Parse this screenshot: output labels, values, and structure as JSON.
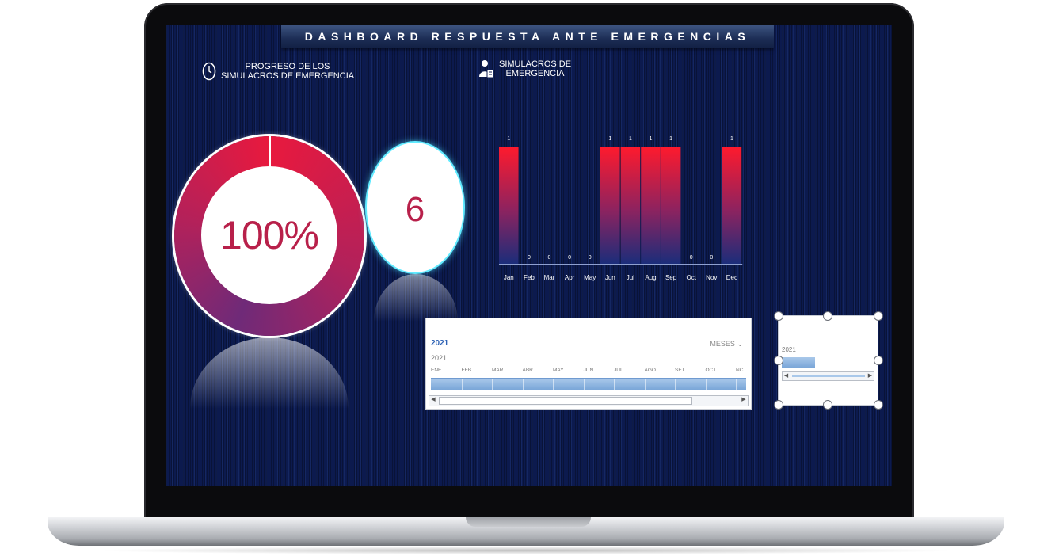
{
  "dashboard": {
    "title": "DASHBOARD RESPUESTA ANTE EMERGENCIAS",
    "progress_header": [
      "PROGRESO DE LOS",
      "SIMULACROS DE EMERGENCIA"
    ],
    "drills_header": [
      "SIMULACROS DE",
      "EMERGENCIA"
    ],
    "progress_value": "100%",
    "progress_fraction": 1.0,
    "drill_count": "6",
    "colors": {
      "accent_red": "#e8193e",
      "accent_purple": "#6f2a78",
      "value_text": "#b8204a",
      "background": "#0c1a4e"
    },
    "icons": {
      "progress": "clock-icon",
      "drills": "person-with-clipboard-icon"
    }
  },
  "chart_data": {
    "type": "bar",
    "categories": [
      "Jan",
      "Feb",
      "Mar",
      "Apr",
      "May",
      "Jun",
      "Jul",
      "Aug",
      "Sep",
      "Oct",
      "Nov",
      "Dec"
    ],
    "values": [
      1,
      0,
      0,
      0,
      0,
      1,
      1,
      1,
      1,
      0,
      0,
      1
    ],
    "data_labels": [
      "1",
      "0",
      "0",
      "0",
      "0",
      "1",
      "1",
      "1",
      "1",
      "0",
      "0",
      "1"
    ],
    "ylim": [
      0,
      1
    ],
    "grid": false,
    "legend": "none",
    "bar_gradient": [
      "#ff1a2d",
      "#5b2a78",
      "#1b2d7a"
    ]
  },
  "timeline": {
    "year_label": "2021",
    "year_value": "2021",
    "level": "MESES",
    "months": [
      "ENE",
      "FEB",
      "MAR",
      "ABR",
      "MAY",
      "JUN",
      "JUL",
      "AGO",
      "SET",
      "OCT",
      "NC"
    ]
  },
  "year_slicer": {
    "year": "2021"
  }
}
